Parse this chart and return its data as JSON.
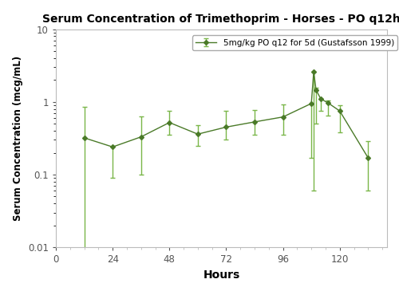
{
  "title": "Serum Concentration of Trimethoprim - Horses - PO q12h",
  "xlabel": "Hours",
  "ylabel": "Serum Concentration (mcg/mL)",
  "legend_label": "5mg/kg PO q12 for 5d (Gustafsson 1999)",
  "line_color": "#4a7a28",
  "errbar_color": "#7ab648",
  "xlim": [
    0,
    140
  ],
  "ylim": [
    0.01,
    10
  ],
  "xticks": [
    0,
    24,
    48,
    72,
    96,
    120
  ],
  "hours": [
    12,
    24,
    36,
    48,
    60,
    72,
    84,
    96,
    108,
    109,
    110,
    112,
    115,
    120,
    132
  ],
  "values": [
    0.32,
    0.24,
    0.33,
    0.52,
    0.36,
    0.45,
    0.53,
    0.62,
    0.95,
    2.6,
    1.45,
    1.1,
    0.97,
    0.75,
    0.17
  ],
  "yerr_low": [
    0.32,
    0.15,
    0.23,
    0.17,
    0.11,
    0.15,
    0.18,
    0.27,
    0.78,
    2.54,
    0.95,
    0.35,
    0.32,
    0.37,
    0.11
  ],
  "yerr_high": [
    0.53,
    0.0,
    0.3,
    0.23,
    0.12,
    0.3,
    0.25,
    0.3,
    0.0,
    0.0,
    0.1,
    0.0,
    0.08,
    0.15,
    0.12
  ]
}
